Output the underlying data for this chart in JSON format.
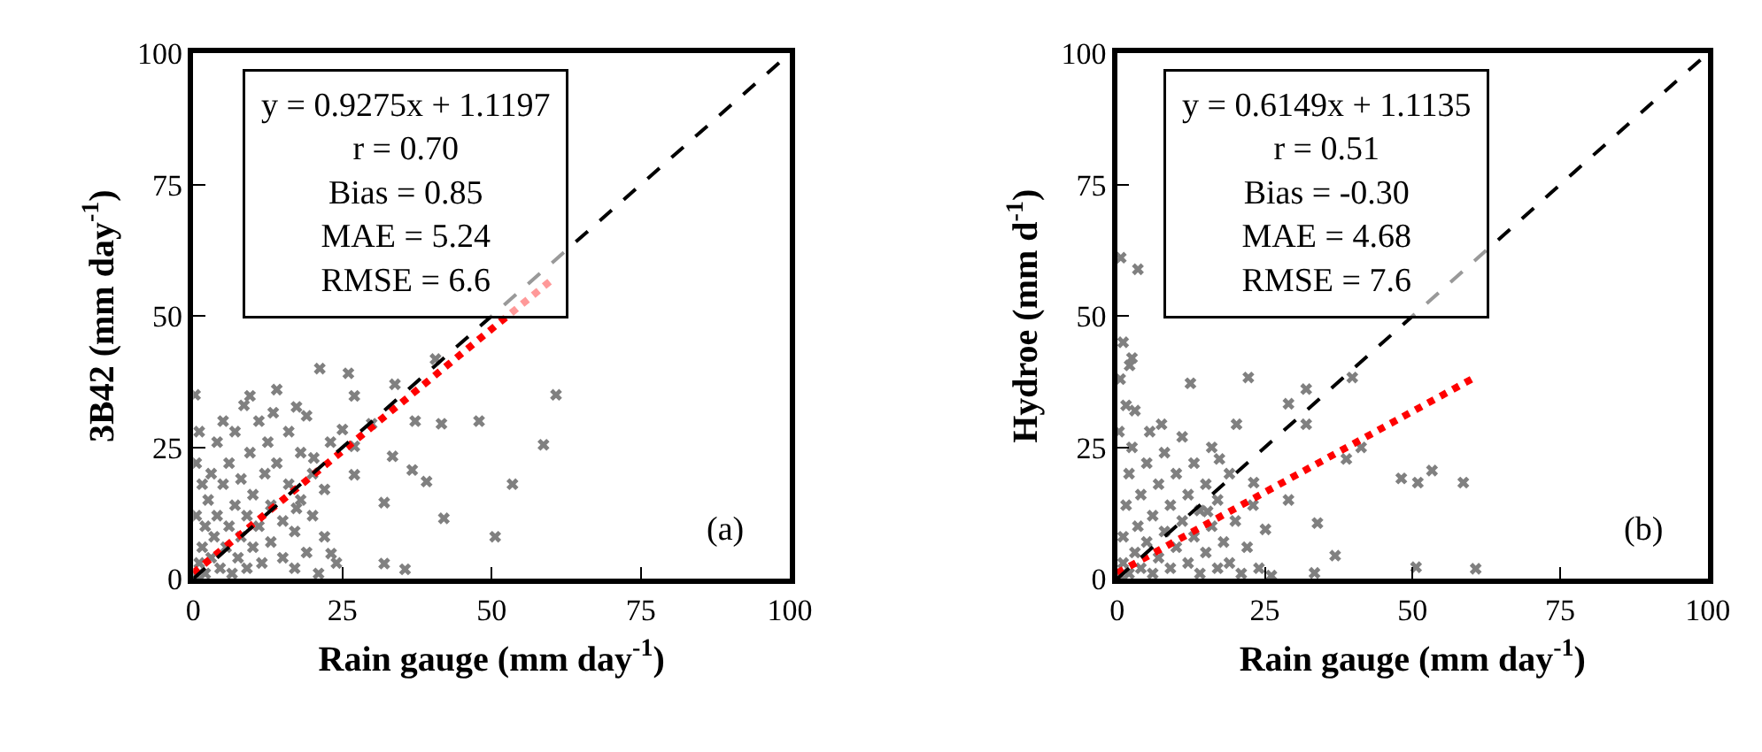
{
  "chart_data": [
    {
      "type": "scatter",
      "xlabel": "Rain gauge (mm day$^{-1}$)",
      "ylabel": "3B42 (mm day$^{-1}$)",
      "xlim": [
        0,
        100
      ],
      "ylim": [
        0,
        100
      ],
      "xticks": [
        0,
        25,
        50,
        75,
        100
      ],
      "yticks": [
        0,
        25,
        50,
        75,
        100
      ],
      "grid": false,
      "annotations": [
        "y = 0.9275x + 1.1197\nr = 0.70\nBias = 0.85\nMAE = 5.24\nRMSE = 6.6",
        "(a)"
      ],
      "series": [
        {
          "color": "#808080",
          "marker": "cross",
          "x": [
            60.8,
            58.7,
            53.5,
            50.6,
            47.9,
            42.0,
            39.1,
            36.7,
            33.4,
            32.0,
            32.0,
            35.5,
            41.6,
            37.2,
            33.8,
            40.6,
            27.0,
            26.0,
            21.2,
            17.3,
            23.1,
            27.0,
            29.9,
            27.0,
            20.2,
            13.4,
            9.5,
            17.3,
            25.0,
            0.5,
            1,
            1.5,
            2,
            2,
            2.5,
            3,
            3,
            3.5,
            4,
            4,
            4.5,
            5,
            5,
            5.5,
            6,
            6,
            6.5,
            7,
            7,
            7.5,
            8,
            8,
            8.5,
            9,
            9,
            9.5,
            10,
            10,
            11,
            11,
            11.5,
            12,
            12.5,
            13,
            13,
            14,
            14,
            15,
            15,
            16,
            16,
            17,
            17,
            18,
            18,
            19,
            19,
            20,
            20,
            21,
            22,
            22,
            23,
            24,
            0.5,
            0.5,
            1,
            1.5,
            0.3
          ],
          "values": [
            35.0,
            25.5,
            18.0,
            8.0,
            30.0,
            11.5,
            18.5,
            20.7,
            23.3,
            14.5,
            2.9,
            1.8,
            29.5,
            30.0,
            37.0,
            41.8,
            34.8,
            39.1,
            40.0,
            13.4,
            4.8,
            19.8,
            29.5,
            25.2,
            23.0,
            31.6,
            34.8,
            32.7,
            28.4,
            0.5,
            3,
            6,
            1,
            10,
            15,
            4,
            20,
            8,
            12,
            26,
            2,
            18,
            30,
            6,
            10,
            22,
            1,
            14,
            28,
            4,
            8,
            19,
            33,
            12,
            2,
            24,
            6,
            16,
            30,
            10,
            3,
            20,
            26,
            7,
            14,
            36,
            22,
            4,
            11,
            18,
            28,
            2,
            9,
            24,
            15,
            5,
            31,
            12,
            20,
            1,
            8,
            17,
            26,
            3,
            12,
            22,
            28,
            18,
            35
          ]
        },
        {
          "type": "line",
          "color": "#ff0000",
          "marker": "none",
          "line_style": "dotted",
          "x": [
            0,
            60
          ],
          "values": [
            1.1,
            56.8
          ]
        },
        {
          "type": "line",
          "color": "#000000",
          "marker": "none",
          "line_style": "dashed",
          "x": [
            0,
            100
          ],
          "values": [
            0,
            100
          ]
        }
      ]
    },
    {
      "type": "scatter",
      "xlabel": "Rain gauge (mm day$^{-1}$)",
      "ylabel": "Hydroe (mm d$^{-1}$)",
      "xlim": [
        0,
        100
      ],
      "ylim": [
        0,
        100
      ],
      "xticks": [
        0,
        25,
        50,
        75,
        100
      ],
      "yticks": [
        0,
        25,
        50,
        75,
        100
      ],
      "grid": false,
      "annotations": [
        "y = 0.6149x + 1.1135\nr = 0.51\nBias = -0.30\nMAE = 4.68\nRMSE = 7.6",
        "(b)"
      ],
      "series": [
        {
          "color": "#808080",
          "marker": "cross",
          "x": [
            60.7,
            50.6,
            58.6,
            53.3,
            50.9,
            48.1,
            41.3,
            38.8,
            39.8,
            32.0,
            29.0,
            32.0,
            33.9,
            36.9,
            33.4,
            26.1,
            29.0,
            23.1,
            22.2,
            12.4,
            2.1,
            0.6,
            3.5,
            20.2,
            17.3,
            25.1,
            15.3,
            7.5,
            0.5,
            1,
            1,
            1.5,
            2,
            2,
            2.5,
            3,
            3,
            3.5,
            4,
            4,
            5,
            5,
            5.5,
            6,
            6,
            7,
            7,
            8,
            8,
            9,
            9,
            10,
            10,
            11,
            11,
            12,
            12,
            13,
            13,
            14,
            14,
            15,
            15,
            16,
            16,
            17,
            17,
            18,
            19,
            19,
            20,
            21,
            22,
            23,
            24,
            0.5,
            1,
            0.3,
            1.5,
            2.5
          ],
          "values": [
            1.9,
            2.2,
            18.3,
            20.6,
            18.3,
            19.1,
            25.0,
            22.8,
            38.3,
            36.1,
            33.3,
            29.4,
            10.6,
            4.4,
            1.1,
            0.6,
            15.0,
            18.3,
            38.3,
            37.2,
            40.6,
            61.1,
            58.9,
            29.4,
            22.8,
            9.4,
            12.8,
            29.4,
            0.5,
            3,
            8,
            14,
            1,
            20,
            25,
            5,
            32,
            10,
            16,
            2,
            22,
            7,
            28,
            12,
            1,
            18,
            4,
            9,
            24,
            14,
            2,
            6,
            20,
            11,
            27,
            3,
            16,
            8,
            22,
            1,
            13,
            5,
            18,
            10,
            25,
            2,
            15,
            7,
            20,
            3,
            11,
            1,
            6,
            14,
            2,
            38,
            45,
            28,
            33,
            42
          ]
        },
        {
          "type": "line",
          "color": "#ff0000",
          "marker": "none",
          "line_style": "dotted",
          "x": [
            0,
            61
          ],
          "values": [
            1.1,
            38.6
          ]
        },
        {
          "type": "line",
          "color": "#000000",
          "marker": "none",
          "line_style": "dashed",
          "x": [
            0,
            100
          ],
          "values": [
            0,
            100
          ]
        }
      ]
    }
  ]
}
